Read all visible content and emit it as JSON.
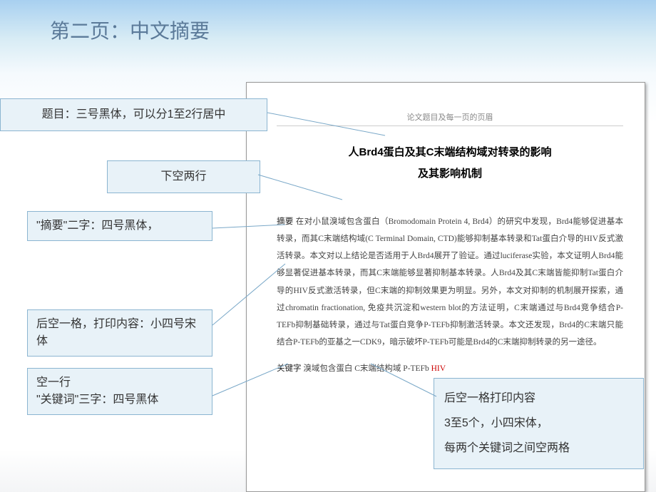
{
  "slide": {
    "title": "第二页：中文摘要"
  },
  "callouts": {
    "c1": "题目：三号黑体，可以分1至2行居中",
    "c2": "下空两行",
    "c3": "\"摘要\"二字：四号黑体，",
    "c4": "后空一格，打印内容：小四号宋体",
    "c5": "空一行\n\"关键词\"三字：四号黑体",
    "c6": "后空一格打印内容\n3至5个，小四宋体，\n每两个关键词之间空两格"
  },
  "page": {
    "header": "论文题目及每一页的页眉",
    "title_line1": "人Brd4蛋白及其C末端结构域对转录的影响",
    "title_line2": "及其影响机制",
    "abstract_label": "摘要",
    "abstract_text": " 在对小鼠溴域包含蛋白（Bromodomain Protein 4, Brd4）的研究中发现，Brd4能够促进基本转录，而其C末端结构域(C Terminal Domain, CTD)能够抑制基本转录和Tat蛋白介导的HIV反式激活转录。本文对以上结论是否适用于人Brd4展开了验证。通过luciferase实验，本文证明人Brd4能够显著促进基本转录，而其C末端能够显著抑制基本转录。人Brd4及其C末端皆能抑制Tat蛋白介导的HIV反式激活转录，但C末端的抑制效果更为明显。另外，本文对抑制的机制展开探索，通过chromatin fractionation, 免疫共沉淀和western blot的方法证明，C末端通过与Brd4竞争结合P-TEFb抑制基础转录，通过与Tat蛋白竞争P-TEFb抑制激活转录。本文还发现，Brd4的C末端只能结合P-TEFb的亚基之一CDK9，暗示破坏P-TEFb可能是Brd4的C末端抑制转录的另一途径。",
    "keywords_label": "关键字",
    "keywords_text": "  溴域包含蛋白  C末端结构域  P-TEFb  ",
    "keywords_hiv": "HIV"
  },
  "styling": {
    "background_gradient": [
      "#a8d0f0",
      "#ffffff"
    ],
    "callout_bg": "#e8f2f8",
    "callout_border": "#8bb5d1",
    "title_color": "#5b7a99",
    "connector_color": "#7aa8c8",
    "page_border": "#999999",
    "hiv_color": "#c00000"
  }
}
